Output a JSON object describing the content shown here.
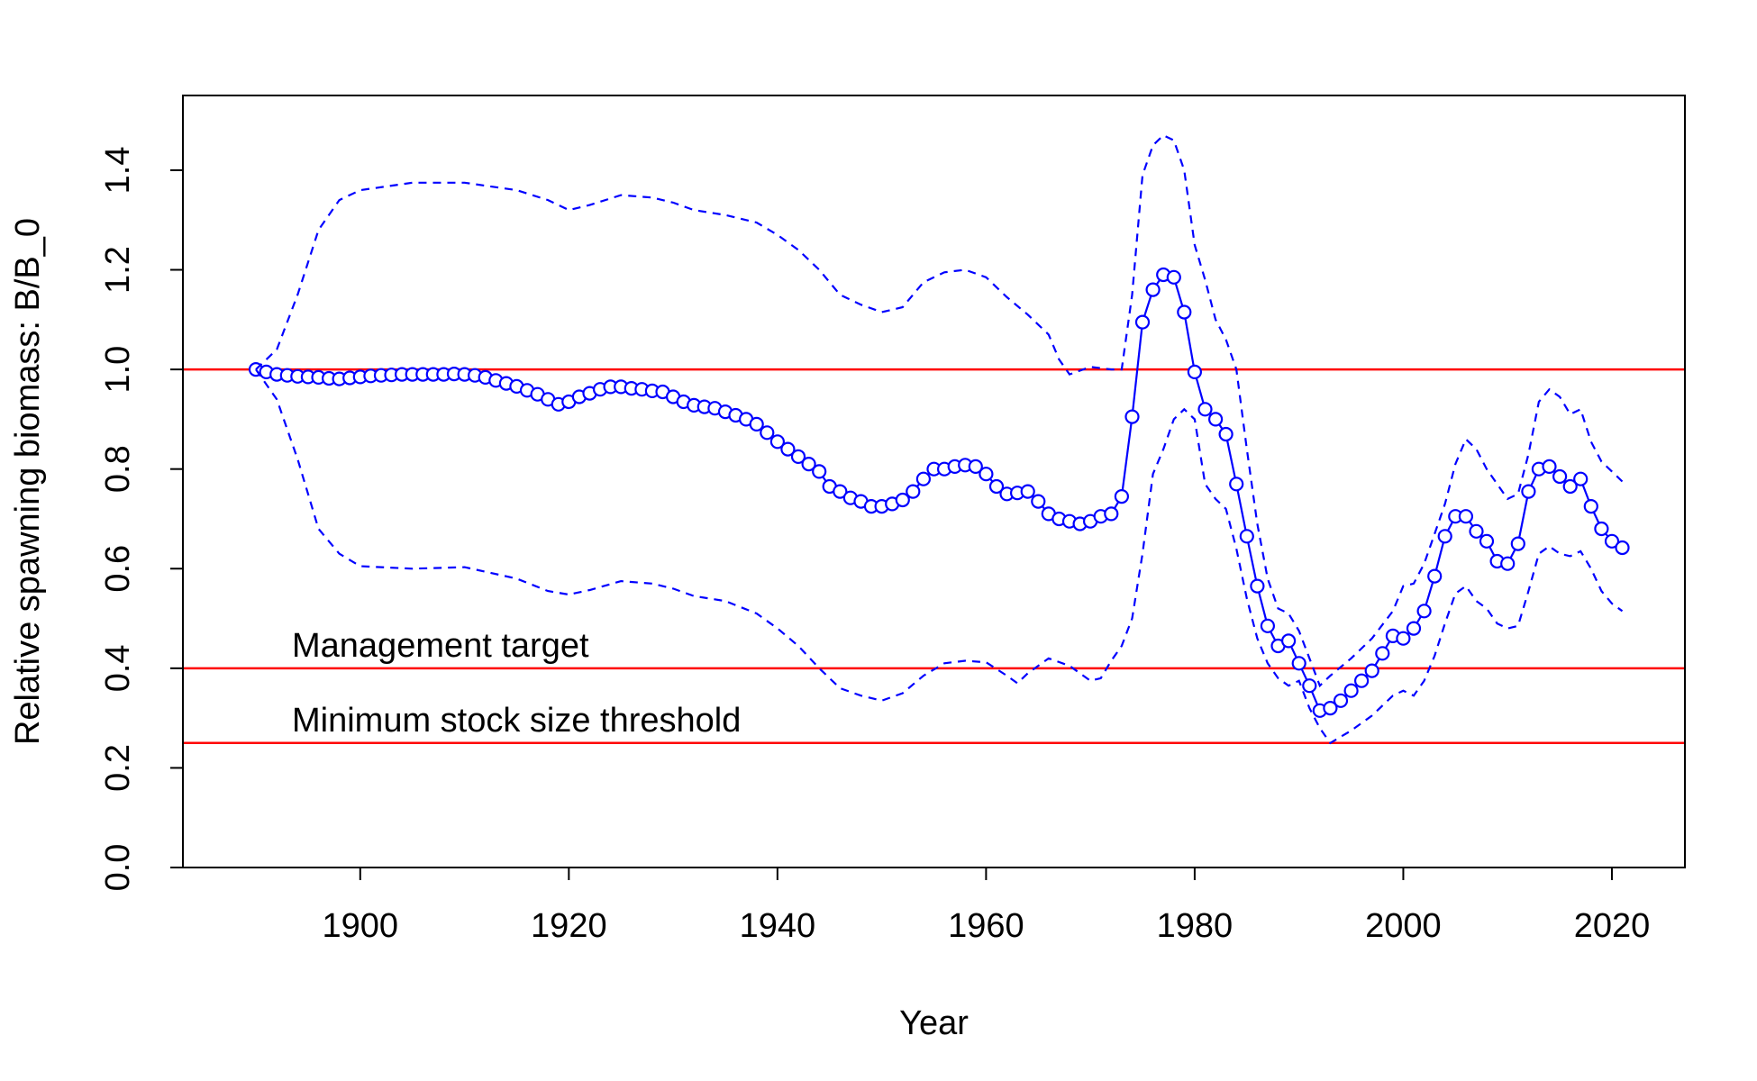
{
  "chart_data": {
    "type": "line",
    "title": "",
    "xlabel": "Year",
    "ylabel": "Relative spawning biomass: B/B_0",
    "xlim": [
      1883,
      2027
    ],
    "ylim": [
      0,
      1.55
    ],
    "x_ticks": [
      1900,
      1920,
      1940,
      1960,
      1980,
      2000,
      2020
    ],
    "y_ticks": [
      "0.0",
      "0.2",
      "0.4",
      "0.6",
      "0.8",
      "1.0",
      "1.2",
      "1.4"
    ],
    "grid": false,
    "legend": "none",
    "reference_lines": [
      {
        "y": 1.0,
        "color": "#ff0000"
      },
      {
        "y": 0.4,
        "color": "#ff0000",
        "label": "Management target"
      },
      {
        "y": 0.25,
        "color": "#ff0000",
        "label": "Minimum stock size threshold"
      }
    ],
    "series": [
      {
        "style": "line-points",
        "color": "#0000ff",
        "x": [
          1890,
          1891,
          1892,
          1893,
          1894,
          1895,
          1896,
          1897,
          1898,
          1899,
          1900,
          1901,
          1902,
          1903,
          1904,
          1905,
          1906,
          1907,
          1908,
          1909,
          1910,
          1911,
          1912,
          1913,
          1914,
          1915,
          1916,
          1917,
          1918,
          1919,
          1920,
          1921,
          1922,
          1923,
          1924,
          1925,
          1926,
          1927,
          1928,
          1929,
          1930,
          1931,
          1932,
          1933,
          1934,
          1935,
          1936,
          1937,
          1938,
          1939,
          1940,
          1941,
          1942,
          1943,
          1944,
          1945,
          1946,
          1947,
          1948,
          1949,
          1950,
          1951,
          1952,
          1953,
          1954,
          1955,
          1956,
          1957,
          1958,
          1959,
          1960,
          1961,
          1962,
          1963,
          1964,
          1965,
          1966,
          1967,
          1968,
          1969,
          1970,
          1971,
          1972,
          1973,
          1974,
          1975,
          1976,
          1977,
          1978,
          1979,
          1980,
          1981,
          1982,
          1983,
          1984,
          1985,
          1986,
          1987,
          1988,
          1989,
          1990,
          1991,
          1992,
          1993,
          1994,
          1995,
          1996,
          1997,
          1998,
          1999,
          2000,
          2001,
          2002,
          2003,
          2004,
          2005,
          2006,
          2007,
          2008,
          2009,
          2010,
          2011,
          2012,
          2013,
          2014,
          2015,
          2016,
          2017,
          2018,
          2019,
          2020,
          2021
        ],
        "values": [
          1.0,
          0.995,
          0.99,
          0.988,
          0.986,
          0.985,
          0.984,
          0.982,
          0.981,
          0.983,
          0.985,
          0.987,
          0.988,
          0.989,
          0.99,
          0.99,
          0.99,
          0.99,
          0.99,
          0.991,
          0.99,
          0.988,
          0.984,
          0.978,
          0.972,
          0.966,
          0.958,
          0.95,
          0.94,
          0.93,
          0.935,
          0.945,
          0.952,
          0.96,
          0.965,
          0.965,
          0.962,
          0.96,
          0.957,
          0.955,
          0.945,
          0.935,
          0.928,
          0.925,
          0.922,
          0.915,
          0.908,
          0.9,
          0.89,
          0.873,
          0.855,
          0.84,
          0.825,
          0.81,
          0.795,
          0.765,
          0.755,
          0.742,
          0.735,
          0.725,
          0.725,
          0.73,
          0.738,
          0.755,
          0.78,
          0.8,
          0.8,
          0.805,
          0.808,
          0.805,
          0.79,
          0.765,
          0.75,
          0.752,
          0.755,
          0.735,
          0.71,
          0.7,
          0.695,
          0.69,
          0.695,
          0.705,
          0.71,
          0.745,
          0.905,
          1.095,
          1.16,
          1.19,
          1.185,
          1.115,
          0.995,
          0.92,
          0.9,
          0.87,
          0.77,
          0.665,
          0.565,
          0.485,
          0.445,
          0.455,
          0.41,
          0.365,
          0.315,
          0.32,
          0.335,
          0.355,
          0.375,
          0.395,
          0.43,
          0.465,
          0.46,
          0.48,
          0.515,
          0.585,
          0.665,
          0.705,
          0.705,
          0.675,
          0.655,
          0.615,
          0.61,
          0.65,
          0.755,
          0.8,
          0.805,
          0.785,
          0.765,
          0.78,
          0.725,
          0.68,
          0.655,
          0.642
        ]
      },
      {
        "style": "dashed",
        "color": "#0000ff",
        "x": [
          1890,
          1892,
          1894,
          1896,
          1898,
          1900,
          1905,
          1910,
          1915,
          1918,
          1920,
          1922,
          1925,
          1928,
          1930,
          1932,
          1935,
          1938,
          1940,
          1942,
          1944,
          1946,
          1948,
          1950,
          1952,
          1954,
          1956,
          1958,
          1960,
          1962,
          1964,
          1966,
          1967,
          1968,
          1970,
          1972,
          1973,
          1974,
          1975,
          1976,
          1977,
          1978,
          1979,
          1980,
          1981,
          1982,
          1983,
          1984,
          1985,
          1986,
          1987,
          1988,
          1989,
          1990,
          1991,
          1992,
          1993,
          1995,
          1997,
          1999,
          2000,
          2001,
          2002,
          2003,
          2004,
          2005,
          2006,
          2007,
          2008,
          2009,
          2010,
          2011,
          2012,
          2013,
          2014,
          2015,
          2016,
          2017,
          2018,
          2019,
          2020,
          2021
        ],
        "values": [
          1.0,
          1.04,
          1.15,
          1.28,
          1.34,
          1.36,
          1.375,
          1.375,
          1.36,
          1.34,
          1.32,
          1.33,
          1.35,
          1.345,
          1.335,
          1.32,
          1.31,
          1.295,
          1.27,
          1.24,
          1.2,
          1.15,
          1.13,
          1.115,
          1.125,
          1.175,
          1.195,
          1.2,
          1.185,
          1.145,
          1.11,
          1.07,
          1.02,
          0.99,
          1.005,
          1.0,
          1.0,
          1.15,
          1.39,
          1.45,
          1.47,
          1.46,
          1.4,
          1.25,
          1.18,
          1.1,
          1.06,
          1.0,
          0.84,
          0.69,
          0.58,
          0.52,
          0.51,
          0.475,
          0.42,
          0.365,
          0.385,
          0.42,
          0.46,
          0.515,
          0.565,
          0.57,
          0.61,
          0.67,
          0.73,
          0.81,
          0.86,
          0.84,
          0.8,
          0.77,
          0.74,
          0.75,
          0.83,
          0.935,
          0.96,
          0.945,
          0.91,
          0.92,
          0.855,
          0.815,
          0.795,
          0.775
        ]
      },
      {
        "style": "dashed",
        "color": "#0000ff",
        "x": [
          1890,
          1892,
          1894,
          1896,
          1898,
          1900,
          1905,
          1910,
          1915,
          1918,
          1920,
          1922,
          1925,
          1928,
          1930,
          1932,
          1935,
          1938,
          1940,
          1942,
          1944,
          1946,
          1948,
          1950,
          1952,
          1954,
          1956,
          1958,
          1960,
          1962,
          1963,
          1964,
          1966,
          1968,
          1969,
          1970,
          1971,
          1972,
          1973,
          1974,
          1975,
          1976,
          1977,
          1978,
          1979,
          1980,
          1981,
          1982,
          1983,
          1984,
          1985,
          1986,
          1987,
          1988,
          1989,
          1990,
          1991,
          1992,
          1993,
          1995,
          1997,
          1999,
          2000,
          2001,
          2002,
          2003,
          2004,
          2005,
          2006,
          2007,
          2008,
          2009,
          2010,
          2011,
          2012,
          2013,
          2014,
          2015,
          2016,
          2017,
          2018,
          2019,
          2020,
          2021
        ],
        "values": [
          1.0,
          0.94,
          0.82,
          0.68,
          0.63,
          0.605,
          0.6,
          0.603,
          0.58,
          0.555,
          0.548,
          0.557,
          0.575,
          0.57,
          0.56,
          0.545,
          0.535,
          0.51,
          0.48,
          0.445,
          0.4,
          0.36,
          0.345,
          0.335,
          0.35,
          0.385,
          0.41,
          0.415,
          0.412,
          0.385,
          0.37,
          0.39,
          0.42,
          0.405,
          0.39,
          0.375,
          0.38,
          0.415,
          0.445,
          0.5,
          0.63,
          0.79,
          0.84,
          0.9,
          0.92,
          0.9,
          0.77,
          0.74,
          0.72,
          0.64,
          0.54,
          0.46,
          0.41,
          0.38,
          0.365,
          0.375,
          0.32,
          0.28,
          0.25,
          0.275,
          0.305,
          0.345,
          0.355,
          0.345,
          0.375,
          0.425,
          0.49,
          0.55,
          0.565,
          0.535,
          0.52,
          0.49,
          0.48,
          0.485,
          0.555,
          0.63,
          0.645,
          0.63,
          0.625,
          0.635,
          0.6,
          0.555,
          0.53,
          0.515
        ]
      }
    ]
  }
}
